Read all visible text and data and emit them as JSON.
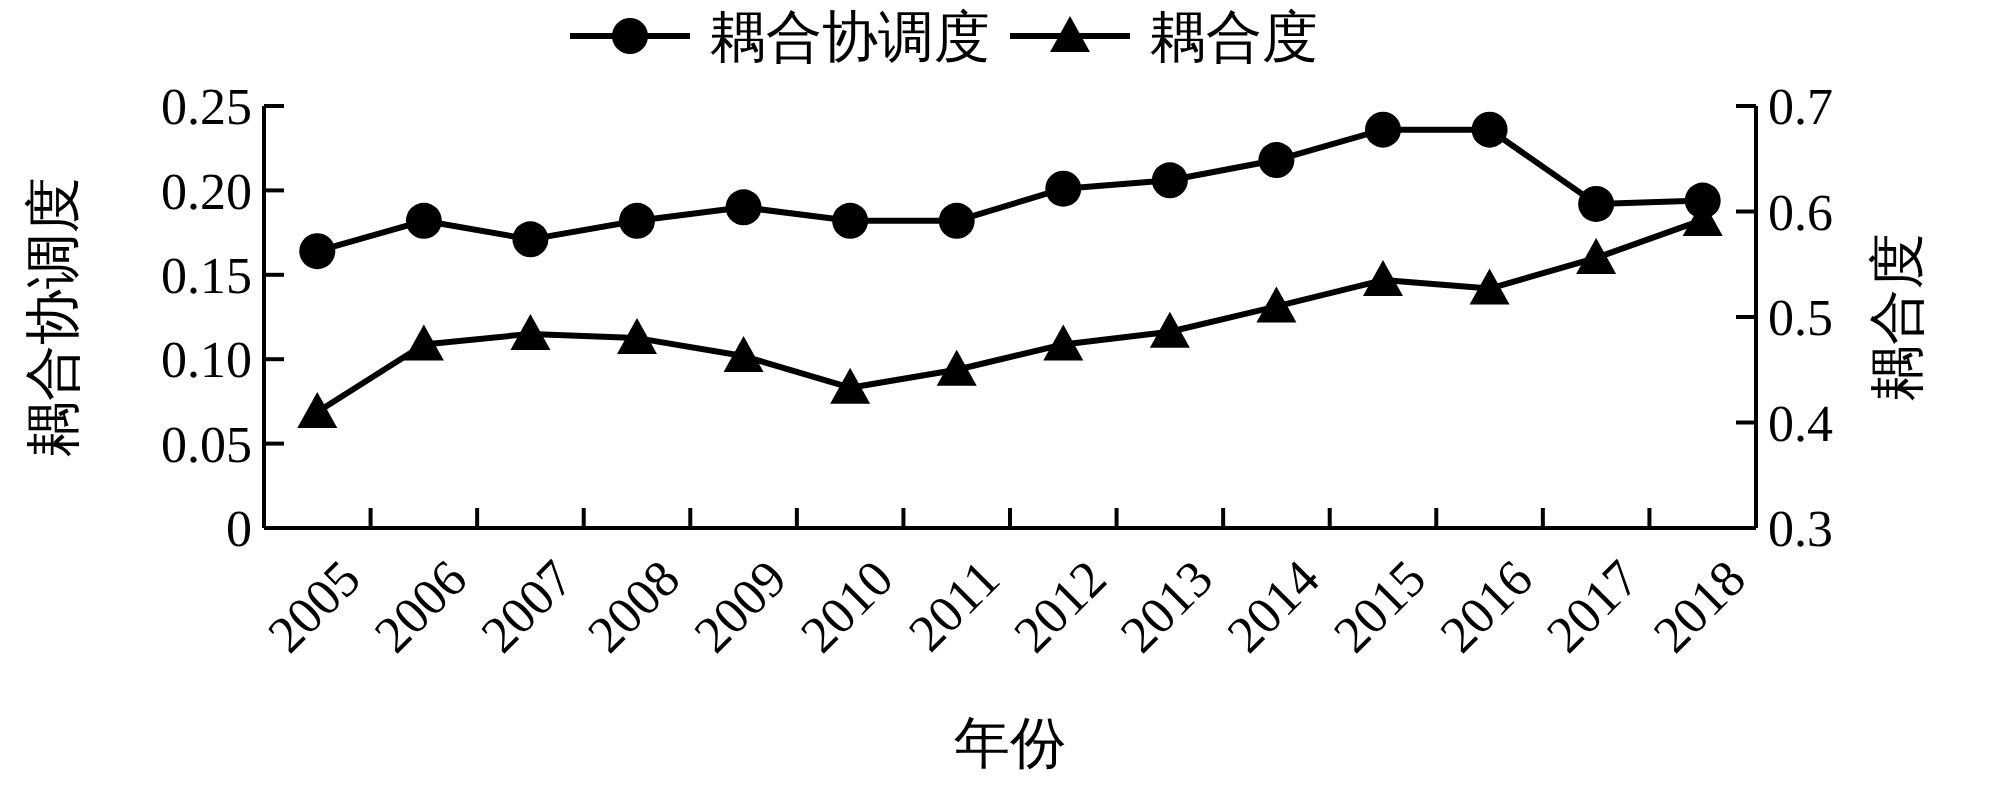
{
  "chart_data": {
    "type": "line",
    "xlabel": "年份",
    "ylabel": "耦合协调度",
    "y2label": "耦合度",
    "categories": [
      "2005",
      "2006",
      "2007",
      "2008",
      "2009",
      "2010",
      "2011",
      "2012",
      "2013",
      "2014",
      "2015",
      "2016",
      "2017",
      "2018"
    ],
    "series": [
      {
        "name": "耦合协调度",
        "color": "#000000",
        "marker": "circle",
        "values": [
          0.164,
          0.182,
          0.171,
          0.182,
          0.19,
          0.182,
          0.182,
          0.201,
          0.206,
          0.218,
          0.236,
          0.236,
          0.192,
          0.194
        ]
      },
      {
        "name": "耦合度",
        "color": "#000000",
        "marker": "triangle",
        "axis": "y2",
        "values": [
          0.41,
          0.474,
          0.484,
          0.48,
          0.463,
          0.433,
          0.45,
          0.474,
          0.486,
          0.51,
          0.535,
          0.527,
          0.556,
          0.592
        ]
      }
    ],
    "ylim": [
      0,
      0.25
    ],
    "yticks": [
      {
        "value": 0,
        "label": "0"
      },
      {
        "value": 0.05,
        "label": "0.05"
      },
      {
        "value": 0.1,
        "label": "0.10"
      },
      {
        "value": 0.15,
        "label": "0.15"
      },
      {
        "value": 0.2,
        "label": "0.20"
      },
      {
        "value": 0.25,
        "label": "0.25"
      }
    ],
    "y2lim": [
      0.3,
      0.7
    ],
    "y2ticks": [
      0.3,
      0.4,
      0.5,
      0.6,
      0.7
    ],
    "legend": "top",
    "grid": false,
    "line_style": "solid"
  }
}
